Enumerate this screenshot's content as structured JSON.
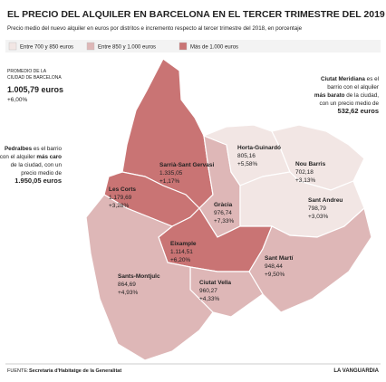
{
  "title": "EL PRECIO DEL ALQUILER EN BARCELONA EN EL TERCER TRIMESTRE DEL 2019",
  "subtitle": "Precio medio del nuevo alquiler en euros por distritos e incremento respecto al tercer trimestre del 2018, en porcentaje",
  "legend": [
    {
      "label": "Entre 700 y 850 euros",
      "color": "#f2e6e4"
    },
    {
      "label": "Entre 850 y 1.000 euros",
      "color": "#deb7b7"
    },
    {
      "label": "Más de 1.000 euros",
      "color": "#c97474"
    }
  ],
  "average": {
    "label_lines": [
      "PROMEDIO DE LA",
      "CIUDAD DE BARCELONA"
    ],
    "value": "1.005,79 euros",
    "change": "+6,00%"
  },
  "districts": [
    {
      "name": "Sarrià-Sant Gervasi",
      "price": "1.335,05",
      "change": "+1,17%",
      "color": "#c97474"
    },
    {
      "name": "Les Corts",
      "price": "1.179,69",
      "change": "+3,28%",
      "color": "#c97474"
    },
    {
      "name": "Gràcia",
      "price": "976,74",
      "change": "+7,33%",
      "color": "#deb7b7"
    },
    {
      "name": "Horta-Guinardó",
      "price": "805,16",
      "change": "+5,58%",
      "color": "#f2e6e4"
    },
    {
      "name": "Nou Barris",
      "price": "702,18",
      "change": "+3,13%",
      "color": "#f2e6e4"
    },
    {
      "name": "Sant Andreu",
      "price": "798,79",
      "change": "+3,03%",
      "color": "#f2e6e4"
    },
    {
      "name": "Eixample",
      "price": "1.114,51",
      "change": "+6,20%",
      "color": "#c97474"
    },
    {
      "name": "Sant Martí",
      "price": "948,44",
      "change": "+9,50%",
      "color": "#deb7b7"
    },
    {
      "name": "Ciutat Vella",
      "price": "960,27",
      "change": "+4,33%",
      "color": "#deb7b7"
    },
    {
      "name": "Sants-Montjuïc",
      "price": "864,69",
      "change": "+4,93%",
      "color": "#deb7b7"
    }
  ],
  "notes": [
    {
      "lines": [
        [
          {
            "text": "Ciutat Meridiana",
            "bold": true
          },
          {
            "text": " es el",
            "bold": false
          }
        ],
        [
          {
            "text": "barrio con el alquiler",
            "bold": false
          }
        ],
        [
          {
            "text": "más barato",
            "bold": true
          },
          {
            "text": " de la ciudad,",
            "bold": false
          }
        ],
        [
          {
            "text": "con un precio medio de",
            "bold": false
          }
        ],
        [
          {
            "text": "532,62 euros",
            "bold": true
          }
        ]
      ]
    },
    {
      "lines": [
        [
          {
            "text": "Pedralbes",
            "bold": true
          },
          {
            "text": " es el barrio",
            "bold": false
          }
        ],
        [
          {
            "text": "con el alquiler ",
            "bold": false
          },
          {
            "text": "más caro",
            "bold": true
          }
        ],
        [
          {
            "text": "de la ciudad, con un",
            "bold": false
          }
        ],
        [
          {
            "text": "precio medio de",
            "bold": false
          }
        ],
        [
          {
            "text": "1.950,05 euros",
            "bold": true
          }
        ]
      ]
    }
  ],
  "footer": {
    "source_label": "FUENTE:",
    "source": "Secretaria d'Habitatge de la Generalitat",
    "brand": "LA VANGUARDIA"
  }
}
